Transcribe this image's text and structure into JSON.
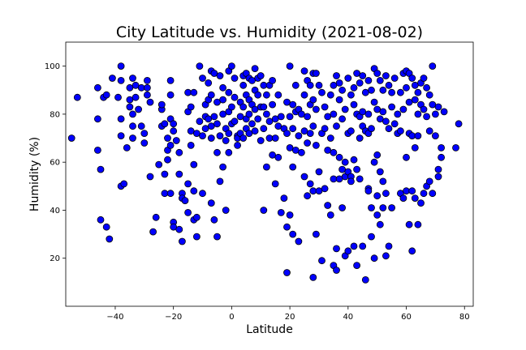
{
  "chart_data": {
    "type": "scatter",
    "title": "City Latitude vs. Humidity (2021-08-02)",
    "xlabel": "Latitude",
    "ylabel": "Humidity (%)",
    "xlim": [
      -57,
      83
    ],
    "ylim": [
      0,
      110
    ],
    "xticks": [
      -40,
      -20,
      0,
      20,
      40,
      60,
      80
    ],
    "yticks": [
      20,
      40,
      60,
      80,
      100
    ],
    "grid": false,
    "marker_color": "#0000ff",
    "marker_edge": "#000000",
    "points": [
      [
        -55,
        70
      ],
      [
        -53,
        87
      ],
      [
        -46,
        91
      ],
      [
        -46,
        78
      ],
      [
        -46,
        65
      ],
      [
        -45,
        57
      ],
      [
        -45,
        36
      ],
      [
        -44,
        87
      ],
      [
        -43,
        88
      ],
      [
        -43,
        33
      ],
      [
        -42,
        28
      ],
      [
        -41,
        95
      ],
      [
        -39,
        87
      ],
      [
        -38,
        100
      ],
      [
        -38,
        94
      ],
      [
        -38,
        78
      ],
      [
        -38,
        71
      ],
      [
        -38,
        50
      ],
      [
        -37,
        51
      ],
      [
        -36,
        66
      ],
      [
        -35,
        91
      ],
      [
        -35,
        86
      ],
      [
        -35,
        83
      ],
      [
        -34,
        95
      ],
      [
        -34,
        80
      ],
      [
        -34,
        75
      ],
      [
        -34,
        70
      ],
      [
        -33,
        92
      ],
      [
        -33,
        87
      ],
      [
        -32,
        82
      ],
      [
        -31,
        91
      ],
      [
        -31,
        75
      ],
      [
        -30,
        68
      ],
      [
        -30,
        72
      ],
      [
        -29,
        94
      ],
      [
        -29,
        91
      ],
      [
        -29,
        88
      ],
      [
        -28,
        85
      ],
      [
        -28,
        54
      ],
      [
        -27,
        31
      ],
      [
        -26,
        37
      ],
      [
        -25,
        59
      ],
      [
        -24,
        75
      ],
      [
        -24,
        82
      ],
      [
        -24,
        84
      ],
      [
        -23,
        76
      ],
      [
        -23,
        55
      ],
      [
        -23,
        47
      ],
      [
        -22,
        70
      ],
      [
        -22,
        65
      ],
      [
        -22,
        61
      ],
      [
        -21,
        94
      ],
      [
        -21,
        88
      ],
      [
        -21,
        78
      ],
      [
        -21,
        67
      ],
      [
        -21,
        47
      ],
      [
        -20,
        76
      ],
      [
        -20,
        73
      ],
      [
        -20,
        35
      ],
      [
        -20,
        33
      ],
      [
        -19,
        69
      ],
      [
        -18,
        64
      ],
      [
        -18,
        55
      ],
      [
        -18,
        32
      ],
      [
        -17,
        47
      ],
      [
        -17,
        45
      ],
      [
        -17,
        27
      ],
      [
        -16,
        44
      ],
      [
        -15,
        89
      ],
      [
        -15,
        81
      ],
      [
        -15,
        51
      ],
      [
        -15,
        39
      ],
      [
        -14,
        83
      ],
      [
        -14,
        73
      ],
      [
        -14,
        67
      ],
      [
        -13,
        89
      ],
      [
        -13,
        59
      ],
      [
        -13,
        48
      ],
      [
        -13,
        36
      ],
      [
        -12,
        72
      ],
      [
        -12,
        37
      ],
      [
        -12,
        29
      ],
      [
        -11,
        100
      ],
      [
        -11,
        77
      ],
      [
        -10,
        95
      ],
      [
        -10,
        71
      ],
      [
        -10,
        47
      ],
      [
        -9,
        84
      ],
      [
        -9,
        79
      ],
      [
        -9,
        74
      ],
      [
        -8,
        93
      ],
      [
        -8,
        86
      ],
      [
        -8,
        78
      ],
      [
        -7,
        98
      ],
      [
        -7,
        88
      ],
      [
        -7,
        75
      ],
      [
        -7,
        70
      ],
      [
        -7,
        43
      ],
      [
        -6,
        97
      ],
      [
        -6,
        79
      ],
      [
        -6,
        36
      ],
      [
        -5,
        85
      ],
      [
        -5,
        76
      ],
      [
        -5,
        64
      ],
      [
        -5,
        29
      ],
      [
        -4,
        96
      ],
      [
        -4,
        71
      ],
      [
        -4,
        52
      ],
      [
        -3,
        91
      ],
      [
        -3,
        86
      ],
      [
        -3,
        80
      ],
      [
        -3,
        58
      ],
      [
        -2,
        74
      ],
      [
        -2,
        69
      ],
      [
        -2,
        40
      ],
      [
        -1,
        98
      ],
      [
        -1,
        89
      ],
      [
        -1,
        81
      ],
      [
        -1,
        72
      ],
      [
        -1,
        64
      ],
      [
        0,
        100
      ],
      [
        0,
        83
      ],
      [
        0,
        76
      ],
      [
        1,
        95
      ],
      [
        1,
        87
      ],
      [
        1,
        77
      ],
      [
        2,
        71
      ],
      [
        2,
        67
      ],
      [
        2,
        70
      ],
      [
        3,
        85
      ],
      [
        3,
        79
      ],
      [
        3,
        72
      ],
      [
        4,
        96
      ],
      [
        4,
        92
      ],
      [
        4,
        83
      ],
      [
        4,
        70
      ],
      [
        5,
        97
      ],
      [
        5,
        88
      ],
      [
        5,
        78
      ],
      [
        5,
        74
      ],
      [
        6,
        95
      ],
      [
        6,
        86
      ],
      [
        6,
        80
      ],
      [
        6,
        72
      ],
      [
        7,
        94
      ],
      [
        7,
        84
      ],
      [
        7,
        76
      ],
      [
        8,
        99
      ],
      [
        8,
        90
      ],
      [
        8,
        82
      ],
      [
        8,
        73
      ],
      [
        9,
        95
      ],
      [
        9,
        88
      ],
      [
        9,
        78
      ],
      [
        10,
        96
      ],
      [
        10,
        83
      ],
      [
        10,
        69
      ],
      [
        11,
        92
      ],
      [
        11,
        83
      ],
      [
        11,
        74
      ],
      [
        11,
        40
      ],
      [
        12,
        88
      ],
      [
        12,
        80
      ],
      [
        12,
        58
      ],
      [
        13,
        92
      ],
      [
        13,
        77
      ],
      [
        13,
        70
      ],
      [
        14,
        94
      ],
      [
        14,
        84
      ],
      [
        14,
        63
      ],
      [
        15,
        78
      ],
      [
        15,
        70
      ],
      [
        15,
        51
      ],
      [
        16,
        88
      ],
      [
        16,
        75
      ],
      [
        16,
        62
      ],
      [
        17,
        79
      ],
      [
        17,
        39
      ],
      [
        18,
        74
      ],
      [
        18,
        45
      ],
      [
        19,
        85
      ],
      [
        19,
        72
      ],
      [
        19,
        33
      ],
      [
        19,
        14
      ],
      [
        20,
        100
      ],
      [
        20,
        79
      ],
      [
        20,
        66
      ],
      [
        20,
        38
      ],
      [
        21,
        84
      ],
      [
        21,
        74
      ],
      [
        21,
        58
      ],
      [
        21,
        30
      ],
      [
        22,
        92
      ],
      [
        22,
        81
      ],
      [
        22,
        65
      ],
      [
        23,
        82
      ],
      [
        23,
        71
      ],
      [
        23,
        27
      ],
      [
        24,
        80
      ],
      [
        24,
        64
      ],
      [
        25,
        98
      ],
      [
        25,
        88
      ],
      [
        25,
        73
      ],
      [
        25,
        54
      ],
      [
        26,
        94
      ],
      [
        26,
        79
      ],
      [
        26,
        68
      ],
      [
        26,
        46
      ],
      [
        27,
        92
      ],
      [
        27,
        84
      ],
      [
        27,
        72
      ],
      [
        27,
        51
      ],
      [
        28,
        97
      ],
      [
        28,
        86
      ],
      [
        28,
        75
      ],
      [
        28,
        48
      ],
      [
        28,
        12
      ],
      [
        29,
        97
      ],
      [
        29,
        82
      ],
      [
        29,
        67
      ],
      [
        29,
        30
      ],
      [
        30,
        92
      ],
      [
        30,
        56
      ],
      [
        30,
        48
      ],
      [
        31,
        89
      ],
      [
        31,
        72
      ],
      [
        31,
        19
      ],
      [
        32,
        83
      ],
      [
        32,
        74
      ],
      [
        32,
        49
      ],
      [
        33,
        79
      ],
      [
        33,
        65
      ],
      [
        33,
        42
      ],
      [
        34,
        88
      ],
      [
        34,
        70
      ],
      [
        34,
        38
      ],
      [
        35,
        92
      ],
      [
        35,
        80
      ],
      [
        35,
        64
      ],
      [
        35,
        53
      ],
      [
        35,
        17
      ],
      [
        36,
        96
      ],
      [
        36,
        75
      ],
      [
        36,
        15
      ],
      [
        36,
        24
      ],
      [
        37,
        93
      ],
      [
        37,
        86
      ],
      [
        37,
        62
      ],
      [
        37,
        53
      ],
      [
        38,
        90
      ],
      [
        38,
        78
      ],
      [
        38,
        57
      ],
      [
        38,
        41
      ],
      [
        39,
        82
      ],
      [
        39,
        60
      ],
      [
        39,
        54
      ],
      [
        39,
        21
      ],
      [
        40,
        95
      ],
      [
        40,
        72
      ],
      [
        40,
        56
      ],
      [
        40,
        23
      ],
      [
        41,
        88
      ],
      [
        41,
        73
      ],
      [
        41,
        54
      ],
      [
        41,
        52
      ],
      [
        42,
        91
      ],
      [
        42,
        84
      ],
      [
        42,
        61
      ],
      [
        42,
        25
      ],
      [
        43,
        97
      ],
      [
        43,
        80
      ],
      [
        43,
        57
      ],
      [
        43,
        17
      ],
      [
        44,
        93
      ],
      [
        44,
        79
      ],
      [
        44,
        70
      ],
      [
        44,
        53
      ],
      [
        45,
        96
      ],
      [
        45,
        81
      ],
      [
        45,
        75
      ],
      [
        45,
        25
      ],
      [
        46,
        89
      ],
      [
        46,
        73
      ],
      [
        46,
        11
      ],
      [
        47,
        94
      ],
      [
        47,
        80
      ],
      [
        47,
        72
      ],
      [
        47,
        49
      ],
      [
        47,
        48
      ],
      [
        48,
        90
      ],
      [
        48,
        74
      ],
      [
        48,
        41
      ],
      [
        48,
        29
      ],
      [
        49,
        99
      ],
      [
        49,
        85
      ],
      [
        49,
        60
      ],
      [
        49,
        20
      ],
      [
        50,
        97
      ],
      [
        50,
        82
      ],
      [
        50,
        63
      ],
      [
        50,
        46
      ],
      [
        50,
        38
      ],
      [
        51,
        94
      ],
      [
        51,
        78
      ],
      [
        51,
        56
      ],
      [
        51,
        34
      ],
      [
        52,
        90
      ],
      [
        52,
        81
      ],
      [
        52,
        52
      ],
      [
        52,
        41
      ],
      [
        53,
        96
      ],
      [
        53,
        77
      ],
      [
        53,
        47
      ],
      [
        53,
        21
      ],
      [
        54,
        92
      ],
      [
        54,
        74
      ],
      [
        54,
        25
      ],
      [
        55,
        89
      ],
      [
        55,
        83
      ],
      [
        55,
        41
      ],
      [
        56,
        95
      ],
      [
        56,
        76
      ],
      [
        57,
        80
      ],
      [
        57,
        72
      ],
      [
        58,
        89
      ],
      [
        58,
        73
      ],
      [
        58,
        47
      ],
      [
        59,
        97
      ],
      [
        59,
        82
      ],
      [
        59,
        45
      ],
      [
        60,
        98
      ],
      [
        60,
        91
      ],
      [
        60,
        62
      ],
      [
        60,
        48
      ],
      [
        61,
        97
      ],
      [
        61,
        85
      ],
      [
        61,
        72
      ],
      [
        61,
        34
      ],
      [
        62,
        95
      ],
      [
        62,
        71
      ],
      [
        62,
        48
      ],
      [
        62,
        23
      ],
      [
        63,
        92
      ],
      [
        63,
        86
      ],
      [
        63,
        66
      ],
      [
        63,
        45
      ],
      [
        64,
        89
      ],
      [
        64,
        80
      ],
      [
        64,
        71
      ],
      [
        64,
        34
      ],
      [
        65,
        93
      ],
      [
        65,
        84
      ],
      [
        65,
        43
      ],
      [
        66,
        95
      ],
      [
        66,
        82
      ],
      [
        66,
        47
      ],
      [
        67,
        91
      ],
      [
        67,
        79
      ],
      [
        67,
        50
      ],
      [
        68,
        88
      ],
      [
        68,
        73
      ],
      [
        68,
        52
      ],
      [
        69,
        100
      ],
      [
        69,
        84
      ],
      [
        69,
        47
      ],
      [
        70,
        80
      ],
      [
        70,
        71
      ],
      [
        71,
        83
      ],
      [
        71,
        57
      ],
      [
        71,
        54
      ],
      [
        72,
        62
      ],
      [
        72,
        66
      ],
      [
        73,
        81
      ],
      [
        77,
        66
      ],
      [
        78,
        76
      ]
    ]
  }
}
